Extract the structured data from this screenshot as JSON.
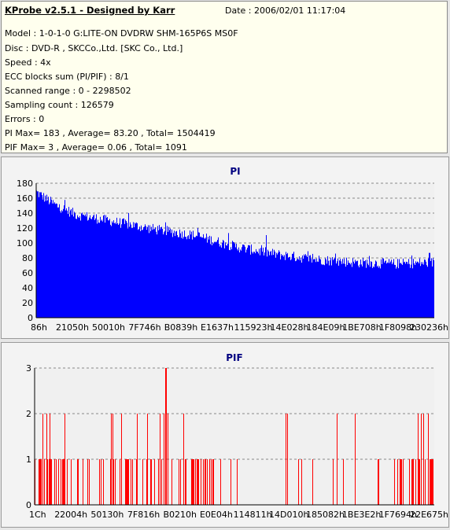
{
  "header": {
    "title": "KProbe v2.5.1 - Designed by Karr",
    "date": "Date : 2006/02/01 11:17:04",
    "lines": [
      "Model : 1-0-1-0 G:LITE-ON DVDRW SHM-165P6S MS0F",
      "Disc : DVD-R , SKCCo.,Ltd. [SKC Co., Ltd.]",
      "Speed : 4x",
      "ECC blocks sum (PI/PIF) : 8/1",
      "Scanned range : 0 - 2298502",
      "Sampling count : 126579",
      "Errors : 0",
      "PI Max= 183 , Average= 83.20 , Total= 1504419",
      "PIF Max= 3 , Average= 0.06 , Total= 1091"
    ]
  },
  "chart_data": [
    {
      "type": "area",
      "title": "PI",
      "color": "#0000ff",
      "ylim": [
        0,
        180
      ],
      "yticks": [
        0,
        20,
        40,
        60,
        80,
        100,
        120,
        140,
        160,
        180
      ],
      "xticks": [
        "86h",
        "21050h",
        "50010h",
        "7F746h",
        "B0839h",
        "E1637h",
        "115923h",
        "14E028h",
        "184E09h",
        "1BE708h",
        "1F8098h",
        "230236h"
      ],
      "grid": true,
      "trend": {
        "x": [
          0.0,
          0.05,
          0.1,
          0.2,
          0.3,
          0.4,
          0.5,
          0.6,
          0.7,
          0.8,
          0.9,
          1.0
        ],
        "y": [
          168,
          150,
          138,
          128,
          118,
          110,
          95,
          85,
          78,
          74,
          72,
          74
        ]
      }
    },
    {
      "type": "bar",
      "title": "PIF",
      "color": "#ff0000",
      "ylim": [
        0,
        3
      ],
      "yticks": [
        0,
        1,
        2,
        3
      ],
      "xticks": [
        "1Ch",
        "22004h",
        "50130h",
        "7F816h",
        "B0210h",
        "E0E04h",
        "114811h",
        "14D010h",
        "185082h",
        "1BE3E2h",
        "1F7694h",
        "22E675h"
      ],
      "grid": true,
      "peak": {
        "x": 0.327,
        "y": 3
      }
    }
  ]
}
